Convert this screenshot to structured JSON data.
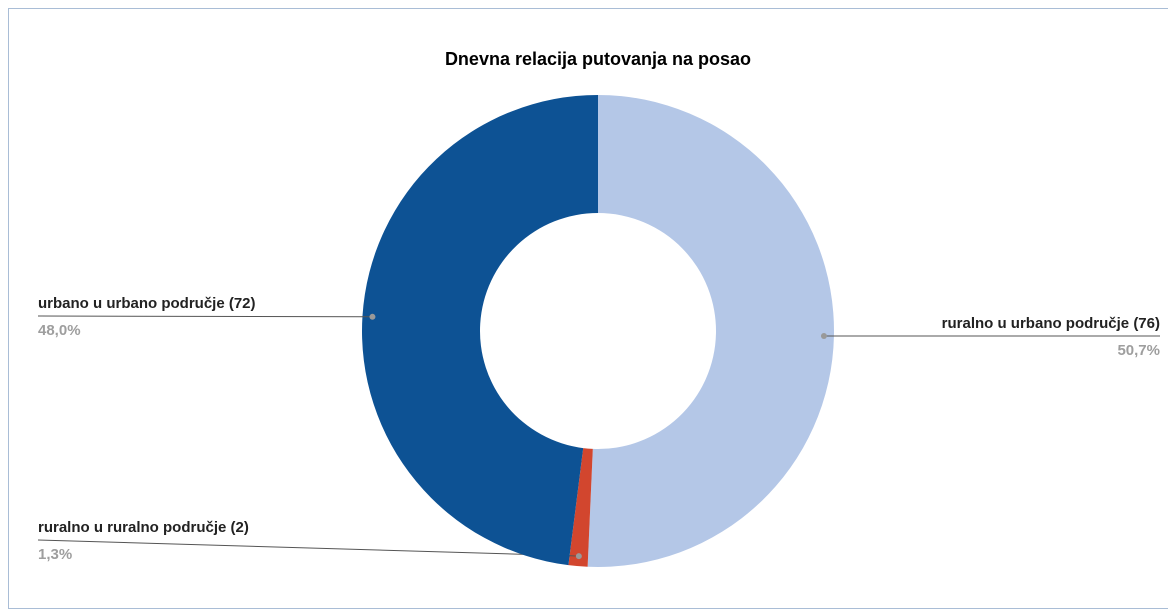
{
  "chart_data": {
    "type": "donut",
    "title": "Dnevna relacija putovanja na posao",
    "categories": [
      "ruralno u urbano područje (76)",
      "ruralno u ruralno područje (2)",
      "urbano u urbano područje (72)"
    ],
    "values": [
      50.7,
      1.3,
      48.0
    ],
    "value_labels": [
      "50,7%",
      "1,3%",
      "48,0%"
    ],
    "colors": [
      "#b4c7e7",
      "#d2462e",
      "#0d5294"
    ]
  }
}
